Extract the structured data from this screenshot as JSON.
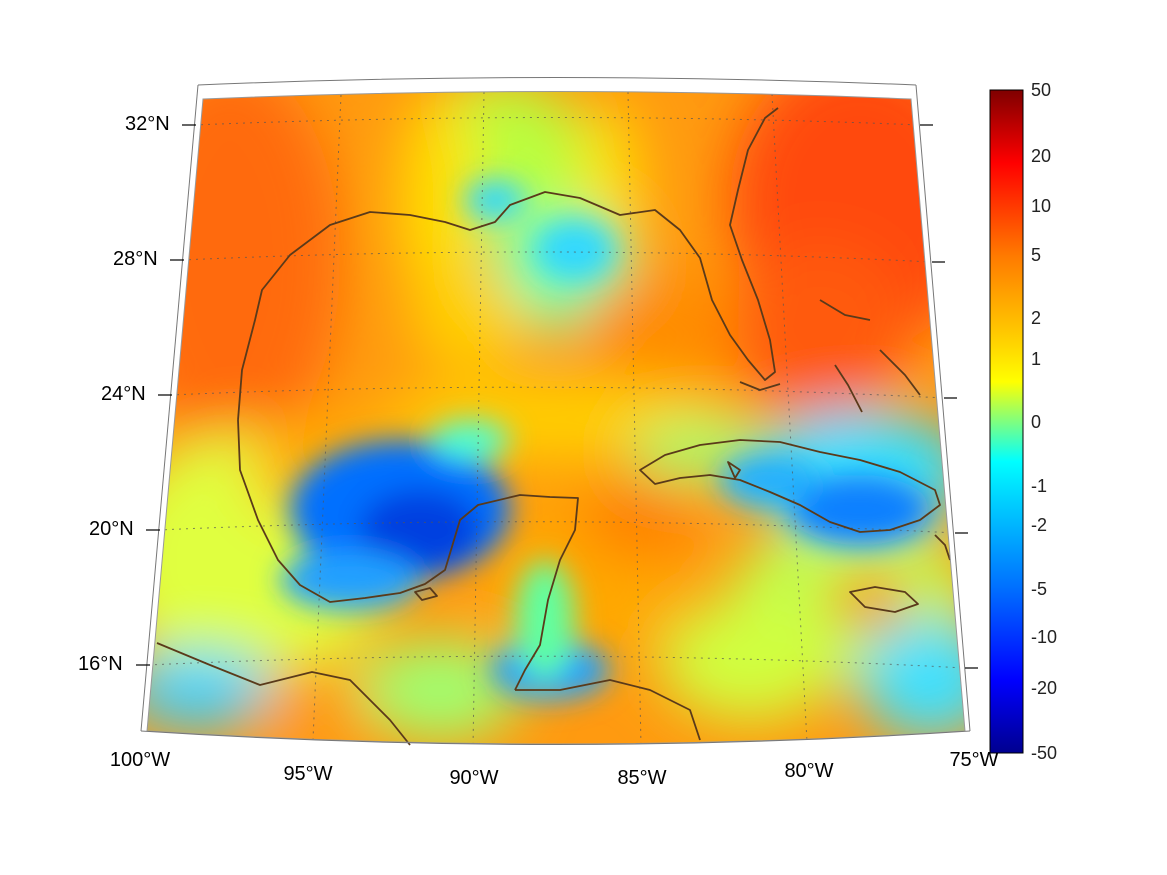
{
  "map": {
    "projection": "lambert-conformal-conic",
    "region": "Gulf of Mexico and Caribbean",
    "lon_range": [
      -100,
      -75
    ],
    "lat_range": [
      14,
      33
    ],
    "lat_ticks": [
      {
        "value": 32,
        "label": "32°N"
      },
      {
        "value": 28,
        "label": "28°N"
      },
      {
        "value": 24,
        "label": "24°N"
      },
      {
        "value": 20,
        "label": "20°N"
      },
      {
        "value": 16,
        "label": "16°N"
      }
    ],
    "lon_ticks": [
      {
        "value": -100,
        "label": "100°W"
      },
      {
        "value": -95,
        "label": "95°W"
      },
      {
        "value": -90,
        "label": "90°W"
      },
      {
        "value": -85,
        "label": "85°W"
      },
      {
        "value": -80,
        "label": "80°W"
      },
      {
        "value": -75,
        "label": "75°W"
      }
    ],
    "coastline_color": "#5a3a1a",
    "gridline_style": "dotted"
  },
  "colorbar": {
    "colormap": "jet",
    "scale": "symmetric-log",
    "labels": [
      "50",
      "20",
      "10",
      "5",
      "2",
      "1",
      "0",
      "-1",
      "-2",
      "-5",
      "-10",
      "-20",
      "-50"
    ]
  }
}
